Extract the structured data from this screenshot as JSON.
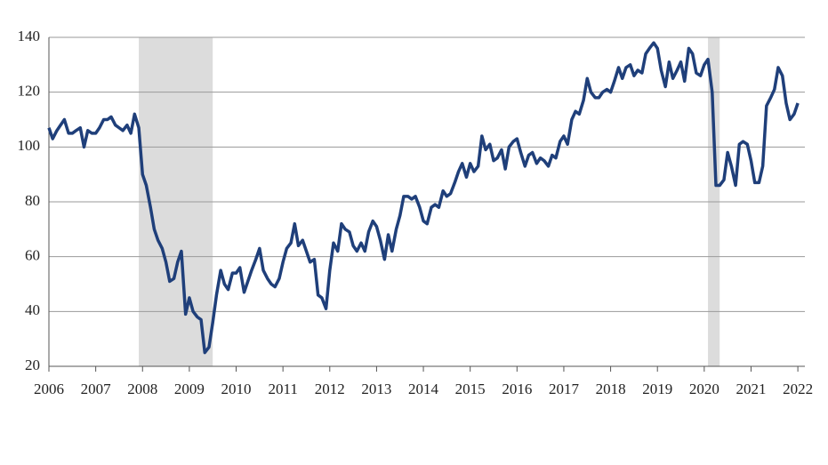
{
  "chart_data": {
    "type": "line",
    "x": [
      2006,
      2006.08,
      2006.17,
      2006.25,
      2006.33,
      2006.42,
      2006.5,
      2006.58,
      2006.67,
      2006.75,
      2006.83,
      2006.92,
      2007,
      2007.08,
      2007.17,
      2007.25,
      2007.33,
      2007.42,
      2007.5,
      2007.58,
      2007.67,
      2007.75,
      2007.83,
      2007.92,
      2008,
      2008.08,
      2008.17,
      2008.25,
      2008.33,
      2008.42,
      2008.5,
      2008.58,
      2008.67,
      2008.75,
      2008.83,
      2008.92,
      2009,
      2009.08,
      2009.17,
      2009.25,
      2009.33,
      2009.42,
      2009.5,
      2009.58,
      2009.67,
      2009.75,
      2009.83,
      2009.92,
      2010,
      2010.08,
      2010.17,
      2010.25,
      2010.33,
      2010.42,
      2010.5,
      2010.58,
      2010.67,
      2010.75,
      2010.83,
      2010.92,
      2011,
      2011.08,
      2011.17,
      2011.25,
      2011.33,
      2011.42,
      2011.5,
      2011.58,
      2011.67,
      2011.75,
      2011.83,
      2011.92,
      2012,
      2012.08,
      2012.17,
      2012.25,
      2012.33,
      2012.42,
      2012.5,
      2012.58,
      2012.67,
      2012.75,
      2012.83,
      2012.92,
      2013,
      2013.08,
      2013.17,
      2013.25,
      2013.33,
      2013.42,
      2013.5,
      2013.58,
      2013.67,
      2013.75,
      2013.83,
      2013.92,
      2014,
      2014.08,
      2014.17,
      2014.25,
      2014.33,
      2014.42,
      2014.5,
      2014.58,
      2014.67,
      2014.75,
      2014.83,
      2014.92,
      2015,
      2015.08,
      2015.17,
      2015.25,
      2015.33,
      2015.42,
      2015.5,
      2015.58,
      2015.67,
      2015.75,
      2015.83,
      2015.92,
      2016,
      2016.08,
      2016.17,
      2016.25,
      2016.33,
      2016.42,
      2016.5,
      2016.58,
      2016.67,
      2016.75,
      2016.83,
      2016.92,
      2017,
      2017.08,
      2017.17,
      2017.25,
      2017.33,
      2017.42,
      2017.5,
      2017.58,
      2017.67,
      2017.75,
      2017.83,
      2017.92,
      2018,
      2018.08,
      2018.17,
      2018.25,
      2018.33,
      2018.42,
      2018.5,
      2018.58,
      2018.67,
      2018.75,
      2018.83,
      2018.92,
      2019,
      2019.08,
      2019.17,
      2019.25,
      2019.33,
      2019.42,
      2019.5,
      2019.58,
      2019.67,
      2019.75,
      2019.83,
      2019.92,
      2020,
      2020.08,
      2020.17,
      2020.25,
      2020.33,
      2020.42,
      2020.5,
      2020.58,
      2020.67,
      2020.75,
      2020.83,
      2020.92,
      2021,
      2021.08,
      2021.17,
      2021.25,
      2021.33,
      2021.42,
      2021.5,
      2021.58,
      2021.67,
      2021.75,
      2021.83,
      2021.92,
      2022
    ],
    "series": [
      {
        "color": "#1f3f7a",
        "values": [
          107,
          103,
          106,
          108,
          110,
          105,
          105,
          106,
          107,
          100,
          106,
          105,
          105,
          107,
          110,
          110,
          111,
          108,
          107,
          106,
          108,
          105,
          112,
          107,
          90,
          86,
          78,
          70,
          66,
          63,
          58,
          51,
          52,
          58,
          62,
          39,
          45,
          40,
          38,
          37,
          25,
          27,
          36,
          46,
          55,
          50,
          48,
          54,
          54,
          56,
          47,
          51,
          55,
          59,
          63,
          55,
          52,
          50,
          49,
          52,
          58,
          63,
          65,
          72,
          64,
          66,
          62,
          58,
          59,
          46,
          45,
          41,
          55,
          65,
          62,
          72,
          70,
          69,
          64,
          62,
          65,
          62,
          69,
          73,
          71,
          66,
          59,
          68,
          62,
          70,
          75,
          82,
          82,
          81,
          82,
          78,
          73,
          72,
          78,
          79,
          78,
          84,
          82,
          83,
          87,
          91,
          94,
          89,
          94,
          91,
          93,
          104,
          99,
          101,
          95,
          96,
          99,
          92,
          100,
          102,
          103,
          98,
          93,
          97,
          98,
          94,
          96,
          95,
          93,
          97,
          96,
          102,
          104,
          101,
          110,
          113,
          112,
          117,
          125,
          120,
          118,
          118,
          120,
          121,
          120,
          124,
          129,
          125,
          129,
          130,
          126,
          128,
          127,
          134,
          136,
          138,
          136,
          128,
          122,
          131,
          125,
          128,
          131,
          124,
          136,
          134,
          127,
          126,
          130,
          132,
          120,
          86,
          86,
          88,
          98,
          93,
          86,
          101,
          102,
          101,
          95,
          87,
          87,
          93,
          115,
          118,
          121,
          129,
          126,
          116,
          110,
          112,
          116
        ]
      }
    ],
    "shaded_periods": [
      {
        "start": 2007.92,
        "end": 2009.5
      },
      {
        "start": 2020.08,
        "end": 2020.33
      }
    ],
    "shade_color": "#dcdcdc",
    "xlim": [
      2006,
      2022.15
    ],
    "xticks": [
      2006,
      2007,
      2008,
      2009,
      2010,
      2011,
      2012,
      2013,
      2014,
      2015,
      2016,
      2017,
      2018,
      2019,
      2020,
      2021,
      2022
    ],
    "ylim": [
      20,
      140
    ],
    "yticks": [
      20,
      40,
      60,
      80,
      100,
      120,
      140
    ],
    "grid": true
  }
}
